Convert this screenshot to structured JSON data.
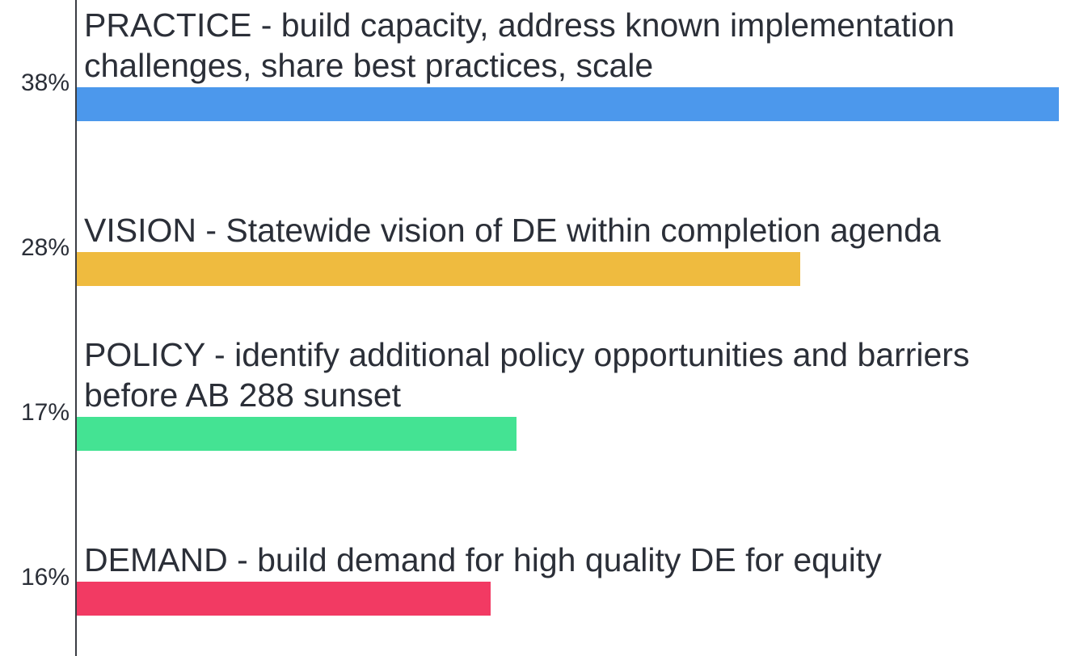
{
  "chart_data": {
    "type": "hbar",
    "categories": [
      "PRACTICE - build capacity, address known implementation challenges, share best practices, scale",
      "VISION - Statewide vision of DE within completion agenda",
      "POLICY - identify additional policy opportunities and barriers before AB 288 sunset",
      "DEMAND - build demand for high quality DE for equity"
    ],
    "values": [
      38,
      28,
      17,
      16
    ],
    "value_labels": [
      "38%",
      "28%",
      "17%",
      "16%"
    ],
    "colors": [
      "#4c98ec",
      "#efbb3f",
      "#44e393",
      "#f23a63"
    ]
  }
}
